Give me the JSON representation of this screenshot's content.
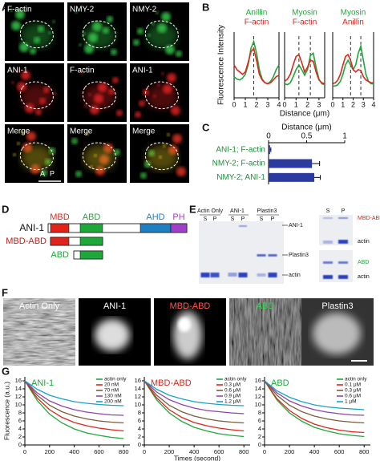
{
  "letters": [
    "A",
    "B",
    "C",
    "D",
    "E",
    "F",
    "G"
  ],
  "panel_a": {
    "labels": [
      "F-actin",
      "NMY-2",
      "NMY-2",
      "ANI-1",
      "F-actin",
      "ANI-1",
      "Merge",
      "Merge",
      "Merge"
    ],
    "axis": [
      "A",
      "P"
    ]
  },
  "panel_d": {
    "constructs": [
      "ANI-1",
      "MBD-ABD",
      "ABD"
    ],
    "domains": [
      "MBD",
      "ABD",
      "AHD",
      "PH"
    ]
  },
  "panel_e": {
    "lanes": [
      "Actin Only",
      "ANI-1",
      "Plastin3"
    ],
    "fractions": [
      "S",
      "P",
      "S",
      "P",
      "S",
      "P",
      "S",
      "P"
    ],
    "bands": [
      "ANI-1",
      "Plastin3",
      "actin"
    ],
    "inset_bands": [
      "MBD-ABD",
      "actin",
      "ABD",
      "actin"
    ]
  },
  "panel_f": {
    "labels": [
      "Actin Only",
      "ANI-1",
      "MBD-ABD",
      "ABD",
      "Plastin3"
    ]
  },
  "chart_data": [
    {
      "type": "line",
      "y_label": "Fluorescence Intensity",
      "x": [
        0,
        0.25,
        0.5,
        0.75,
        1,
        1.25,
        1.5,
        1.75,
        2,
        2.25,
        2.5,
        2.75,
        3,
        3.25,
        3.5,
        3.75,
        4
      ],
      "xlim": [
        0,
        4
      ],
      "xticks": [
        0,
        1,
        2,
        3,
        4
      ],
      "ylim": [
        80,
        220
      ],
      "legend": "top",
      "markers_x": [
        1.75
      ],
      "series": [
        {
          "name": "Anillin",
          "color": "#1fa83a",
          "values": [
            125,
            120,
            118,
            122,
            130,
            150,
            185,
            200,
            175,
            140,
            120,
            112,
            110,
            115,
            125,
            140,
            150
          ]
        },
        {
          "name": "F-actin",
          "color": "#e0241b",
          "values": [
            150,
            140,
            135,
            130,
            135,
            155,
            178,
            185,
            160,
            130,
            118,
            112,
            110,
            112,
            118,
            125,
            128
          ]
        }
      ]
    },
    {
      "type": "line",
      "x_label": "Distance (μm)",
      "x": [
        0,
        0.25,
        0.5,
        0.75,
        1,
        1.25,
        1.5,
        1.75,
        2,
        2.25,
        2.5,
        2.75,
        3,
        3.25,
        3.5
      ],
      "xlim": [
        0,
        3.5
      ],
      "xticks": [
        0,
        1,
        2,
        3
      ],
      "ylim": [
        80,
        220
      ],
      "legend": "top",
      "markers_x": [
        1.25,
        2.25
      ],
      "series": [
        {
          "name": "Myosin",
          "color": "#1fa83a",
          "values": [
            110,
            108,
            112,
            125,
            140,
            150,
            140,
            128,
            140,
            170,
            175,
            145,
            120,
            110,
            108
          ]
        },
        {
          "name": "F-actin",
          "color": "#e0241b",
          "values": [
            115,
            120,
            130,
            150,
            168,
            172,
            155,
            135,
            145,
            160,
            158,
            135,
            118,
            112,
            110
          ]
        }
      ]
    },
    {
      "type": "line",
      "x": [
        0,
        0.25,
        0.5,
        0.75,
        1,
        1.25,
        1.5,
        1.75,
        2,
        2.25,
        2.5,
        2.75,
        3,
        3.25,
        3.5,
        3.75,
        4
      ],
      "xlim": [
        0,
        4
      ],
      "xticks": [
        0,
        1,
        2,
        3,
        4
      ],
      "ylim": [
        80,
        220
      ],
      "legend": "top",
      "markers_x": [
        1.75,
        2.75
      ],
      "series": [
        {
          "name": "Myosin",
          "color": "#1fa83a",
          "values": [
            105,
            105,
            108,
            115,
            130,
            150,
            160,
            150,
            140,
            150,
            175,
            190,
            160,
            130,
            115,
            110,
            110
          ]
        },
        {
          "name": "Anillin",
          "color": "#e0241b",
          "values": [
            110,
            112,
            118,
            130,
            150,
            168,
            172,
            160,
            140,
            135,
            140,
            138,
            125,
            118,
            115,
            112,
            112
          ]
        }
      ]
    },
    {
      "type": "hbar",
      "x_label": "Distance (μm)",
      "categories": [
        "ANI-1; F-actin",
        "NMY-2; F-actin",
        "NMY-2; ANI-1"
      ],
      "values": [
        0.02,
        0.57,
        0.6
      ],
      "errors": [
        0.01,
        0.1,
        0.08
      ],
      "color": "#2b3a9e",
      "xlim": [
        0,
        1
      ],
      "xticks": [
        0,
        0.5,
        1
      ]
    },
    {
      "type": "line",
      "title": "ANI-1",
      "title_color": "#1fa83a",
      "y_label": "Fluorescence (a.u.)",
      "x": [
        0,
        100,
        200,
        300,
        400,
        500,
        600,
        700,
        800
      ],
      "xlim": [
        0,
        850
      ],
      "xticks": [
        0,
        200,
        400,
        600,
        800
      ],
      "ylim": [
        0,
        17
      ],
      "yticks": [
        0,
        2,
        4,
        6,
        8,
        10,
        12,
        14,
        16
      ],
      "legend": "upper right",
      "series": [
        {
          "name": "actin only",
          "color": "#1fa83a",
          "values": [
            16,
            11.1,
            7.7,
            5.5,
            4.0,
            3.0,
            2.4,
            1.9,
            1.6
          ]
        },
        {
          "name": "20 nM",
          "color": "#e0241b",
          "values": [
            16,
            11.7,
            8.8,
            6.9,
            5.6,
            4.8,
            4.2,
            3.8,
            3.5
          ]
        },
        {
          "name": "70 nM",
          "color": "#7b5d3a",
          "values": [
            16,
            12.4,
            9.9,
            8.3,
            7.2,
            6.5,
            6.0,
            5.7,
            5.5
          ]
        },
        {
          "name": "130 nM",
          "color": "#8e44ad",
          "values": [
            16,
            13.0,
            11.0,
            9.7,
            8.8,
            8.2,
            7.8,
            7.5,
            7.4
          ]
        },
        {
          "name": "200 nM",
          "color": "#17a2c9",
          "values": [
            16,
            13.9,
            12.4,
            11.5,
            10.8,
            10.4,
            10.1,
            9.9,
            9.8
          ]
        }
      ]
    },
    {
      "type": "line",
      "title": "MBD-ABD",
      "title_color": "#d02a20",
      "x_label": "Times (second)",
      "x": [
        0,
        100,
        200,
        300,
        400,
        500,
        600,
        700,
        800
      ],
      "xlim": [
        0,
        850
      ],
      "xticks": [
        0,
        200,
        400,
        600,
        800
      ],
      "ylim": [
        0,
        17
      ],
      "yticks": [
        0,
        2,
        4,
        6,
        8,
        10,
        12,
        14,
        16
      ],
      "legend": "upper right",
      "series": [
        {
          "name": "actin only",
          "color": "#1fa83a",
          "values": [
            16,
            11.2,
            8.0,
            5.9,
            4.4,
            3.5,
            2.8,
            2.4,
            2.1
          ]
        },
        {
          "name": "0.3 μM",
          "color": "#e0241b",
          "values": [
            16,
            11.7,
            8.8,
            6.9,
            5.6,
            4.8,
            4.2,
            3.8,
            3.5
          ]
        },
        {
          "name": "0.6 μM",
          "color": "#7b5d3a",
          "values": [
            16,
            12.4,
            9.9,
            8.3,
            7.2,
            6.5,
            6.0,
            5.7,
            5.5
          ]
        },
        {
          "name": "0.9 μM",
          "color": "#8e44ad",
          "values": [
            16,
            13.2,
            11.3,
            10.1,
            9.2,
            8.6,
            8.3,
            8.0,
            7.8
          ]
        },
        {
          "name": "1.2 μM",
          "color": "#17a2c9",
          "values": [
            16,
            13.9,
            12.4,
            11.5,
            10.8,
            10.4,
            10.1,
            9.9,
            9.8
          ]
        }
      ]
    },
    {
      "type": "line",
      "title": "ABD",
      "title_color": "#1fa83a",
      "x": [
        0,
        100,
        200,
        300,
        400,
        500,
        600,
        700,
        800
      ],
      "xlim": [
        0,
        850
      ],
      "xticks": [
        0,
        200,
        400,
        600,
        800
      ],
      "ylim": [
        0,
        17
      ],
      "yticks": [
        0,
        2,
        4,
        6,
        8,
        10,
        12,
        14,
        16
      ],
      "legend": "upper right",
      "series": [
        {
          "name": "actin only",
          "color": "#1fa83a",
          "values": [
            16,
            11.2,
            8.0,
            5.9,
            4.4,
            3.5,
            2.8,
            2.4,
            2.1
          ]
        },
        {
          "name": "0.1 μM",
          "color": "#e0241b",
          "values": [
            16,
            11.5,
            8.6,
            6.6,
            5.2,
            4.3,
            3.7,
            3.3,
            3.1
          ]
        },
        {
          "name": "0.3 μM",
          "color": "#7b5d3a",
          "values": [
            16,
            12.4,
            9.9,
            8.3,
            7.2,
            6.5,
            6.0,
            5.7,
            5.5
          ]
        },
        {
          "name": "0.6 μM",
          "color": "#8e44ad",
          "values": [
            16,
            13.0,
            11.0,
            9.7,
            8.8,
            8.2,
            7.8,
            7.5,
            7.4
          ]
        },
        {
          "name": "1 μM",
          "color": "#17a2c9",
          "values": [
            16,
            13.5,
            11.9,
            10.8,
            10.0,
            9.5,
            9.2,
            9.0,
            8.8
          ]
        }
      ]
    }
  ]
}
